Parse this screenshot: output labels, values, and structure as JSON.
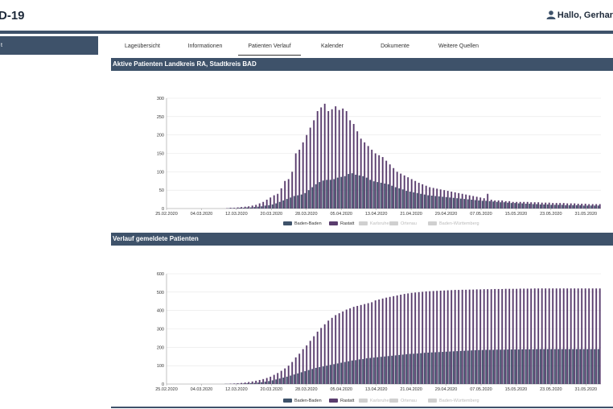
{
  "app": {
    "title": "D-19"
  },
  "user": {
    "greeting": "Hallo, Gerhar"
  },
  "sidebar": {
    "items": [
      {
        "label": "t"
      }
    ]
  },
  "tabs": [
    {
      "label": "Lageübersicht",
      "active": false
    },
    {
      "label": "Informationen",
      "active": false
    },
    {
      "label": "Patienten Verlauf",
      "active": true
    },
    {
      "label": "Kalender",
      "active": false
    },
    {
      "label": "Dokumente",
      "active": false
    },
    {
      "label": "Weitere Quellen",
      "active": false
    }
  ],
  "colors": {
    "baden_baden": "#3e526a",
    "rastatt": "#5a3d6e",
    "disabled": "#d0d0d0",
    "header": "#3e526a"
  },
  "chart_data": [
    {
      "type": "bar",
      "title": "Aktive Patienten Landkreis RA, Stadtkreis BAD",
      "x_tick_labels": [
        "25.02.2020",
        "04.03.2020",
        "12.03.2020",
        "20.03.2020",
        "28.03.2020",
        "05.04.2020",
        "13.04.2020",
        "21.04.2020",
        "29.04.2020",
        "07.05.2020",
        "15.05.2020",
        "23.05.2020",
        "31.05.2020"
      ],
      "y_ticks": [
        0,
        50,
        100,
        150,
        200,
        250,
        300
      ],
      "ylim": [
        0,
        300
      ],
      "grid": true,
      "legend": [
        {
          "name": "Baden-Baden",
          "enabled": true
        },
        {
          "name": "Rastatt",
          "enabled": true
        },
        {
          "name": "Karlsruhe",
          "enabled": false
        },
        {
          "name": "Ortenau",
          "enabled": false
        },
        {
          "name": "Baden-Württemberg",
          "enabled": false
        }
      ],
      "series": [
        {
          "name": "Baden-Baden",
          "color": "#3e526a",
          "values": [
            0,
            0,
            0,
            0,
            0,
            0,
            0,
            0,
            0,
            0,
            0,
            0,
            0,
            0,
            0,
            0,
            0,
            1,
            1,
            1,
            2,
            2,
            3,
            3,
            4,
            5,
            6,
            8,
            9,
            11,
            14,
            18,
            22,
            26,
            30,
            34,
            36,
            38,
            42,
            50,
            58,
            66,
            72,
            76,
            78,
            78,
            80,
            84,
            86,
            88,
            94,
            96,
            92,
            90,
            88,
            84,
            78,
            74,
            72,
            70,
            68,
            66,
            62,
            58,
            55,
            52,
            48,
            46,
            44,
            42,
            40,
            38,
            36,
            35,
            34,
            33,
            32,
            31,
            30,
            29,
            28,
            27,
            26,
            25,
            24,
            23,
            22,
            21,
            21,
            20,
            19,
            18,
            17,
            17,
            16,
            15,
            15,
            14,
            14,
            13,
            13,
            12,
            12,
            11,
            11,
            11,
            10,
            10,
            10,
            10,
            9,
            9,
            9,
            9,
            9,
            8,
            8,
            8,
            8,
            8
          ]
        },
        {
          "name": "Rastatt",
          "color": "#5a3d6e",
          "values": [
            0,
            0,
            0,
            0,
            0,
            0,
            0,
            0,
            0,
            0,
            0,
            0,
            0,
            0,
            0,
            0,
            1,
            2,
            2,
            3,
            4,
            5,
            6,
            8,
            10,
            14,
            18,
            24,
            30,
            36,
            40,
            55,
            75,
            80,
            100,
            150,
            160,
            180,
            200,
            220,
            240,
            265,
            275,
            285,
            265,
            270,
            278,
            268,
            272,
            265,
            240,
            230,
            210,
            190,
            180,
            170,
            160,
            150,
            145,
            140,
            130,
            120,
            110,
            100,
            95,
            90,
            85,
            80,
            75,
            70,
            66,
            62,
            58,
            56,
            54,
            52,
            50,
            48,
            46,
            44,
            42,
            40,
            38,
            36,
            34,
            32,
            30,
            28,
            40,
            24,
            22,
            22,
            22,
            20,
            20,
            18,
            18,
            18,
            18,
            18,
            17,
            17,
            17,
            16,
            16,
            16,
            15,
            15,
            15,
            15,
            14,
            14,
            14,
            13,
            13,
            13,
            12,
            12,
            12,
            12
          ]
        }
      ]
    },
    {
      "type": "bar",
      "title": "Verlauf gemeldete Patienten",
      "x_tick_labels": [
        "25.02.2020",
        "04.03.2020",
        "12.03.2020",
        "20.03.2020",
        "28.03.2020",
        "05.04.2020",
        "13.04.2020",
        "21.04.2020",
        "29.04.2020",
        "07.05.2020",
        "15.05.2020",
        "23.05.2020",
        "31.05.2020"
      ],
      "y_ticks": [
        0,
        100,
        200,
        300,
        400,
        500,
        600
      ],
      "ylim": [
        0,
        600
      ],
      "grid": true,
      "legend": [
        {
          "name": "Baden-Baden",
          "enabled": true
        },
        {
          "name": "Rastatt",
          "enabled": true
        },
        {
          "name": "Karlsruhe",
          "enabled": false
        },
        {
          "name": "Ortenau",
          "enabled": false
        },
        {
          "name": "Baden-Württemberg",
          "enabled": false
        }
      ],
      "series": [
        {
          "name": "Baden-Baden",
          "color": "#3e526a",
          "values": [
            0,
            0,
            0,
            0,
            0,
            0,
            0,
            0,
            0,
            0,
            0,
            0,
            0,
            0,
            0,
            0,
            1,
            1,
            1,
            2,
            2,
            3,
            4,
            5,
            6,
            8,
            10,
            13,
            16,
            20,
            25,
            30,
            35,
            40,
            46,
            52,
            58,
            64,
            70,
            76,
            82,
            88,
            92,
            96,
            100,
            104,
            108,
            112,
            116,
            120,
            124,
            128,
            130,
            134,
            136,
            140,
            142,
            144,
            146,
            148,
            150,
            152,
            154,
            156,
            158,
            160,
            162,
            164,
            165,
            166,
            168,
            170,
            171,
            172,
            173,
            174,
            175,
            176,
            177,
            178,
            179,
            180,
            181,
            182,
            183,
            184,
            185,
            185,
            186,
            186,
            186,
            187,
            187,
            187,
            188,
            188,
            188,
            188,
            189,
            189,
            189,
            189,
            190,
            190,
            190,
            190,
            190,
            190,
            190,
            190,
            190,
            190,
            190,
            190,
            190,
            190,
            190,
            190,
            190,
            190
          ]
        },
        {
          "name": "Rastatt",
          "color": "#5a3d6e",
          "values": [
            0,
            0,
            0,
            0,
            0,
            0,
            0,
            0,
            0,
            0,
            0,
            0,
            0,
            0,
            0,
            0,
            1,
            2,
            3,
            4,
            6,
            8,
            11,
            14,
            18,
            22,
            27,
            33,
            40,
            50,
            60,
            72,
            85,
            100,
            120,
            145,
            165,
            190,
            210,
            235,
            260,
            285,
            305,
            325,
            345,
            360,
            375,
            385,
            395,
            405,
            412,
            420,
            425,
            430,
            435,
            440,
            445,
            455,
            460,
            465,
            470,
            474,
            478,
            482,
            486,
            490,
            493,
            496,
            498,
            500,
            502,
            504,
            505,
            506,
            507,
            508,
            509,
            510,
            511,
            512,
            512,
            513,
            513,
            514,
            514,
            515,
            515,
            516,
            516,
            516,
            517,
            517,
            517,
            518,
            518,
            518,
            518,
            519,
            519,
            519,
            519,
            520,
            520,
            520,
            520,
            520,
            520,
            520,
            520,
            520,
            520,
            520,
            520,
            520,
            520,
            520,
            520,
            520,
            520,
            520
          ]
        }
      ]
    }
  ]
}
